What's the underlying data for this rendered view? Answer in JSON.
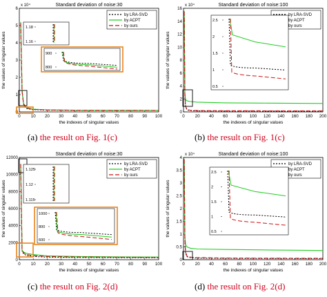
{
  "chart_data": [
    {
      "type": "line",
      "title": "Standard deviation of noise:30",
      "xlabel": "the indexes of singular values",
      "ylabel": "the values of singular values",
      "exponent_label": "x 10⁴",
      "xlim": [
        0,
        100
      ],
      "ylim": [
        0,
        6
      ],
      "x_ticks": [
        "0",
        "10",
        "20",
        "30",
        "40",
        "50",
        "60",
        "70",
        "80",
        "90",
        "100"
      ],
      "y_ticks": [
        "0",
        "1",
        "2",
        "3",
        "4",
        "5",
        "6"
      ],
      "series": [
        {
          "name": "by LRA-SVD",
          "color": "#000000",
          "dash": "2,2",
          "x": [
            1,
            2,
            3,
            5,
            10,
            20,
            40,
            70,
            100
          ],
          "y": [
            5.1,
            1.2,
            0.45,
            0.2,
            0.13,
            0.1,
            0.09,
            0.085,
            0.08
          ]
        },
        {
          "name": "by ACPT",
          "color": "#22cc22",
          "dash": "",
          "x": [
            1,
            2,
            3,
            5,
            10,
            20,
            40,
            70,
            100
          ],
          "y": [
            5.2,
            1.25,
            0.5,
            0.25,
            0.16,
            0.12,
            0.1,
            0.095,
            0.09
          ]
        },
        {
          "name": "by ours",
          "color": "#cc1111",
          "dash": "6,3",
          "x": [
            1,
            2,
            3,
            5,
            10,
            20,
            40,
            70,
            100
          ],
          "y": [
            5.15,
            1.22,
            0.47,
            0.22,
            0.14,
            0.11,
            0.095,
            0.09,
            0.085
          ]
        }
      ],
      "insets": [
        {
          "x_ticks": [],
          "y_ticks": [
            "1.18",
            "1.16"
          ],
          "border": "#000000"
        },
        {
          "x_ticks": [],
          "y_ticks": [
            "900",
            "800"
          ],
          "border": "#e8841a"
        }
      ],
      "caption": {
        "label": "(a)",
        "text": "the result on Fig. 1(c)"
      }
    },
    {
      "type": "line",
      "title": "Standard deviation of noise:100",
      "xlabel": "the indexes of singular values",
      "ylabel": "the values of singular values",
      "exponent_label": "x 10⁴",
      "xlim": [
        0,
        200
      ],
      "ylim": [
        0,
        16
      ],
      "x_ticks": [
        "0",
        "20",
        "40",
        "60",
        "80",
        "100",
        "120",
        "140",
        "160",
        "180",
        "200"
      ],
      "y_ticks": [
        "0",
        "2",
        "4",
        "6",
        "8",
        "10",
        "12",
        "14",
        "16"
      ],
      "series": [
        {
          "name": "by LRA-SVD",
          "color": "#000000",
          "dash": "2,2",
          "x": [
            1,
            2,
            3,
            5,
            10,
            20,
            60,
            120,
            200
          ],
          "y": [
            15.5,
            2.6,
            0.8,
            0.3,
            0.2,
            0.15,
            0.13,
            0.12,
            0.12
          ]
        },
        {
          "name": "by ACPT",
          "color": "#22cc22",
          "dash": "",
          "x": [
            1,
            2,
            3,
            5,
            10,
            20,
            60,
            120,
            200
          ],
          "y": [
            15.6,
            2.8,
            1.9,
            1.7,
            1.6,
            1.5,
            1.4,
            1.35,
            1.3
          ]
        },
        {
          "name": "by ours",
          "color": "#cc1111",
          "dash": "6,3",
          "x": [
            1,
            2,
            3,
            5,
            10,
            20,
            60,
            120,
            200
          ],
          "y": [
            15.5,
            2.7,
            0.9,
            0.35,
            0.25,
            0.2,
            0.17,
            0.16,
            0.15
          ]
        }
      ],
      "insets": [
        {
          "x_ticks": [],
          "y_ticks": [
            "2.5",
            "2",
            "1.5",
            "1",
            "0.5"
          ],
          "border": "#000000"
        }
      ],
      "caption": {
        "label": "(b)",
        "text": "the result on Fig. 1(c)"
      }
    },
    {
      "type": "line",
      "title": "Standard deviation of noise:30",
      "xlabel": "the indexes of singular values",
      "ylabel": "the values of singular values",
      "exponent_label": "",
      "xlim": [
        0,
        100
      ],
      "ylim": [
        0,
        12000
      ],
      "x_ticks": [
        "0",
        "10",
        "20",
        "30",
        "40",
        "50",
        "60",
        "70",
        "80",
        "90",
        "100"
      ],
      "y_ticks": [
        "0",
        "2000",
        "4000",
        "6000",
        "8000",
        "10000",
        "12000"
      ],
      "series": [
        {
          "name": "by LRA-SVD",
          "color": "#000000",
          "dash": "2,2",
          "x": [
            1,
            2,
            3,
            5,
            10,
            20,
            40,
            70,
            100
          ],
          "y": [
            11200,
            1050,
            700,
            500,
            380,
            300,
            260,
            240,
            230
          ]
        },
        {
          "name": "by ACPT",
          "color": "#22cc22",
          "dash": "",
          "x": [
            1,
            2,
            3,
            5,
            10,
            20,
            40,
            70,
            100
          ],
          "y": [
            11250,
            1100,
            900,
            750,
            600,
            450,
            380,
            330,
            310
          ]
        },
        {
          "name": "by ours",
          "color": "#cc1111",
          "dash": "6,3",
          "x": [
            1,
            2,
            3,
            5,
            10,
            20,
            40,
            70,
            100
          ],
          "y": [
            11220,
            1080,
            800,
            620,
            480,
            380,
            320,
            290,
            270
          ]
        }
      ],
      "insets": [
        {
          "x_ticks": [],
          "y_ticks": [
            "1.125",
            "1.12",
            "1.115"
          ],
          "border": "#000000"
        },
        {
          "x_ticks": [],
          "y_ticks": [
            "1000",
            "800",
            "600"
          ],
          "border": "#e8841a"
        }
      ],
      "caption": {
        "label": "(c)",
        "text": "the result on Fig. 2(d)"
      }
    },
    {
      "type": "line",
      "title": "Standard deviation of noise:100",
      "xlabel": "the indexes of singular values",
      "ylabel": "the values of singular values",
      "exponent_label": "x 10⁴",
      "xlim": [
        0,
        200
      ],
      "ylim": [
        0,
        4
      ],
      "x_ticks": [
        "0",
        "20",
        "40",
        "60",
        "80",
        "100",
        "120",
        "140",
        "160",
        "180",
        "200"
      ],
      "y_ticks": [
        "0",
        "0.5",
        "1",
        "1.5",
        "2",
        "2.5",
        "3",
        "3.5",
        "4"
      ],
      "series": [
        {
          "name": "by LRA-SVD",
          "color": "#000000",
          "dash": "2,2",
          "x": [
            1,
            2,
            3,
            5,
            10,
            20,
            60,
            120,
            200
          ],
          "y": [
            3.9,
            0.75,
            0.25,
            0.12,
            0.08,
            0.06,
            0.05,
            0.045,
            0.04
          ]
        },
        {
          "name": "by ACPT",
          "color": "#22cc22",
          "dash": "",
          "x": [
            1,
            2,
            3,
            5,
            10,
            20,
            60,
            120,
            200
          ],
          "y": [
            3.95,
            0.9,
            0.6,
            0.5,
            0.45,
            0.42,
            0.4,
            0.38,
            0.36
          ]
        },
        {
          "name": "by ours",
          "color": "#cc1111",
          "dash": "6,3",
          "x": [
            1,
            2,
            3,
            5,
            10,
            20,
            60,
            120,
            200
          ],
          "y": [
            3.92,
            0.8,
            0.3,
            0.14,
            0.1,
            0.08,
            0.065,
            0.06,
            0.055
          ]
        }
      ],
      "insets": [
        {
          "x_ticks": [],
          "y_ticks": [
            "2.5",
            "2",
            "1.5",
            "1",
            "0.5"
          ],
          "border": "#000000"
        }
      ],
      "caption": {
        "label": "(d)",
        "text": "the result on Fig. 2(d)"
      }
    }
  ],
  "colors": {
    "caption_accent": "#d0021b",
    "zoom_box": "#e8841a"
  }
}
